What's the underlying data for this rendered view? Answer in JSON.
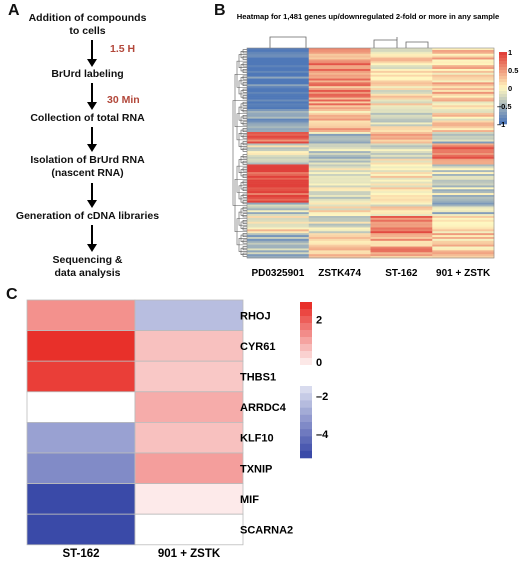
{
  "panels": {
    "a": "A",
    "b": "B",
    "c": "C"
  },
  "workflow": {
    "steps": [
      {
        "lines": [
          "Addition of compounds",
          "to cells"
        ]
      },
      {
        "lines": [
          "BrUrd labeling"
        ]
      },
      {
        "lines": [
          "Collection of total RNA"
        ]
      },
      {
        "lines": [
          "Isolation of BrUrd RNA",
          "(nascent RNA)"
        ]
      },
      {
        "lines": [
          "Generation of cDNA libraries"
        ]
      },
      {
        "lines": [
          "Sequencing &",
          "data analysis"
        ]
      }
    ],
    "times": [
      "1.5 H",
      "30 Min"
    ]
  },
  "chart_data": [
    {
      "type": "heatmap",
      "title": "Heatmap for 1,481 genes up/downregulated 2-fold or more in any sample",
      "columns": [
        "PD0325901",
        "ZSTK474",
        "ST-162",
        "901 + ZSTK"
      ],
      "colorbar_ticks": [
        "1",
        "0.5",
        "0",
        "–0.5",
        "–1"
      ],
      "colorbar_values": [
        1,
        0.5,
        0,
        -0.5,
        -1
      ],
      "row_count": 1481,
      "dendrogram": "rows and columns",
      "colors": {
        "low": "#4f78b8",
        "mid": "#fff7c0",
        "high": "#e0403a"
      }
    },
    {
      "type": "heatmap",
      "columns": [
        "ST-162",
        "901 + ZSTK"
      ],
      "rows": [
        "RHOJ",
        "CYR61",
        "THBS1",
        "ARRDC4",
        "KLF10",
        "TXNIP",
        "MIF",
        "SCARNA2"
      ],
      "values": [
        [
          1.6,
          -1.8
        ],
        [
          3.0,
          0.9
        ],
        [
          2.8,
          0.8
        ],
        [
          0.0,
          1.2
        ],
        [
          -2.6,
          0.9
        ],
        [
          -3.2,
          1.4
        ],
        [
          -5.0,
          0.3
        ],
        [
          -5.0,
          0.0
        ]
      ],
      "colorbar_pos_ticks": [
        "2",
        "0"
      ],
      "colorbar_neg_ticks": [
        "–2",
        "–4"
      ],
      "colors": {
        "pos": "#e8302a",
        "neg": "#3a4aa8",
        "zero": "#ffffff"
      }
    }
  ]
}
